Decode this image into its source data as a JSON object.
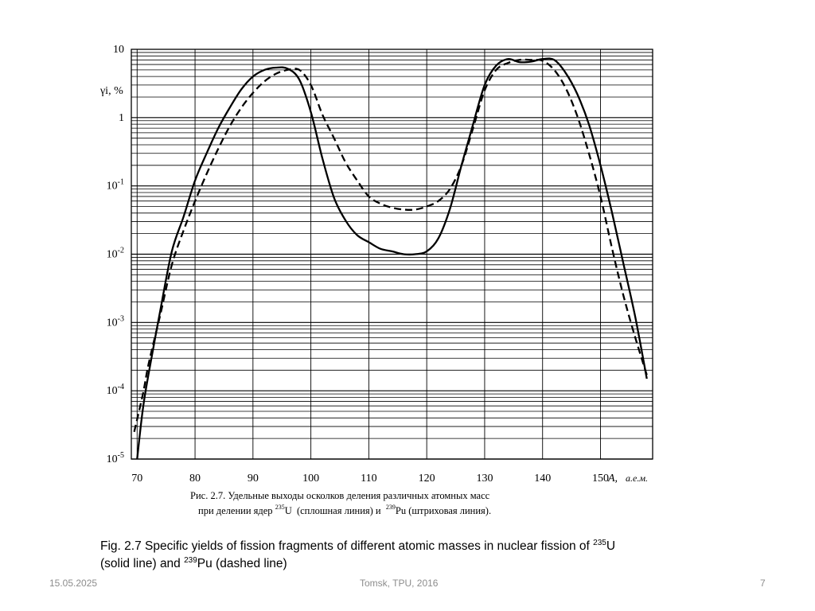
{
  "chart_data": {
    "type": "line",
    "title": "",
    "ylabel": "γi, %",
    "xlabel": "A, а.е.м.",
    "xlabel_symbol": "A,",
    "xlabel_unit": "а.е.м.",
    "y_scale": "log",
    "xlim": [
      69,
      159
    ],
    "ylim": [
      1e-05,
      10
    ],
    "grid": true,
    "x_ticks": [
      "70",
      "80",
      "90",
      "100",
      "110",
      "120",
      "130",
      "140",
      "150"
    ],
    "y_ticks": [
      {
        "base": "10",
        "exp": "-5"
      },
      {
        "base": "10",
        "exp": "-4"
      },
      {
        "base": "10",
        "exp": "-3"
      },
      {
        "base": "10",
        "exp": "-2"
      },
      {
        "base": "10",
        "exp": "-1"
      },
      {
        "base": "1",
        "exp": ""
      },
      {
        "base": "10",
        "exp": ""
      }
    ],
    "series": [
      {
        "style": "solid",
        "x": [
          70,
          71,
          72,
          74,
          76,
          78,
          80,
          82,
          84,
          86,
          88,
          90,
          92,
          94,
          96,
          98,
          100,
          102,
          104,
          106,
          108,
          110,
          112,
          114,
          116,
          118,
          120,
          122,
          124,
          126,
          128,
          130,
          132,
          134,
          136,
          138,
          140,
          142,
          144,
          146,
          148,
          150,
          152,
          154,
          156,
          158
        ],
        "y": [
          1e-05,
          5.5e-05,
          0.00018,
          0.0015,
          0.011,
          0.035,
          0.12,
          0.3,
          0.7,
          1.4,
          2.6,
          4,
          5,
          5.4,
          5.2,
          3.6,
          1.2,
          0.25,
          0.067,
          0.031,
          0.019,
          0.015,
          0.012,
          0.011,
          0.01,
          0.01,
          0.011,
          0.017,
          0.046,
          0.2,
          0.8,
          3,
          5.8,
          7.2,
          6.5,
          6.6,
          7.2,
          7,
          4.5,
          2.2,
          0.8,
          0.2,
          0.04,
          0.007,
          0.0012,
          0.00015
        ]
      },
      {
        "style": "dashed",
        "x": [
          69.5,
          71,
          72,
          74,
          76,
          78,
          80,
          82,
          84,
          86,
          88,
          90,
          92,
          94,
          96,
          98,
          100,
          102,
          104,
          106,
          108,
          110,
          112,
          114,
          116,
          118,
          120,
          122,
          124,
          126,
          128,
          130,
          132,
          134,
          136,
          138,
          140,
          142,
          144,
          146,
          148,
          150,
          152,
          154,
          156,
          158
        ],
        "y": [
          2.5e-05,
          9e-05,
          0.00025,
          0.0013,
          0.007,
          0.022,
          0.06,
          0.15,
          0.35,
          0.75,
          1.4,
          2.3,
          3.4,
          4.4,
          5,
          5,
          3,
          1.1,
          0.5,
          0.22,
          0.12,
          0.07,
          0.055,
          0.048,
          0.045,
          0.045,
          0.05,
          0.06,
          0.09,
          0.2,
          0.7,
          2.5,
          5,
          6.3,
          7,
          7,
          6.8,
          5,
          2.7,
          1.05,
          0.3,
          0.07,
          0.012,
          0.0024,
          0.0006,
          0.00017
        ]
      }
    ]
  },
  "caption_ru": {
    "line1": "Рис. 2.7. Удельные выходы осколков деления различных атомных масс",
    "line2_a": "при делении ядер ",
    "iso1_mass": "235",
    "iso1_sym": "U",
    "line2_b": "  (сплошная линия) и  ",
    "iso2_mass": "239",
    "iso2_sym": "Pu",
    "line2_c": " (штриховая линия)."
  },
  "caption_en": {
    "part1": "Fig. 2.7 Specific yields of fission fragments of different atomic masses in nuclear fission of ",
    "iso1_mass": "235",
    "iso1_sym": "U",
    "part2": "(solid line) and ",
    "iso2_mass": "239",
    "iso2_sym": "Pu (dashed line)"
  },
  "footer": {
    "date": "15.05.2025",
    "center": "Tomsk, TPU, 2016",
    "page": "7"
  }
}
